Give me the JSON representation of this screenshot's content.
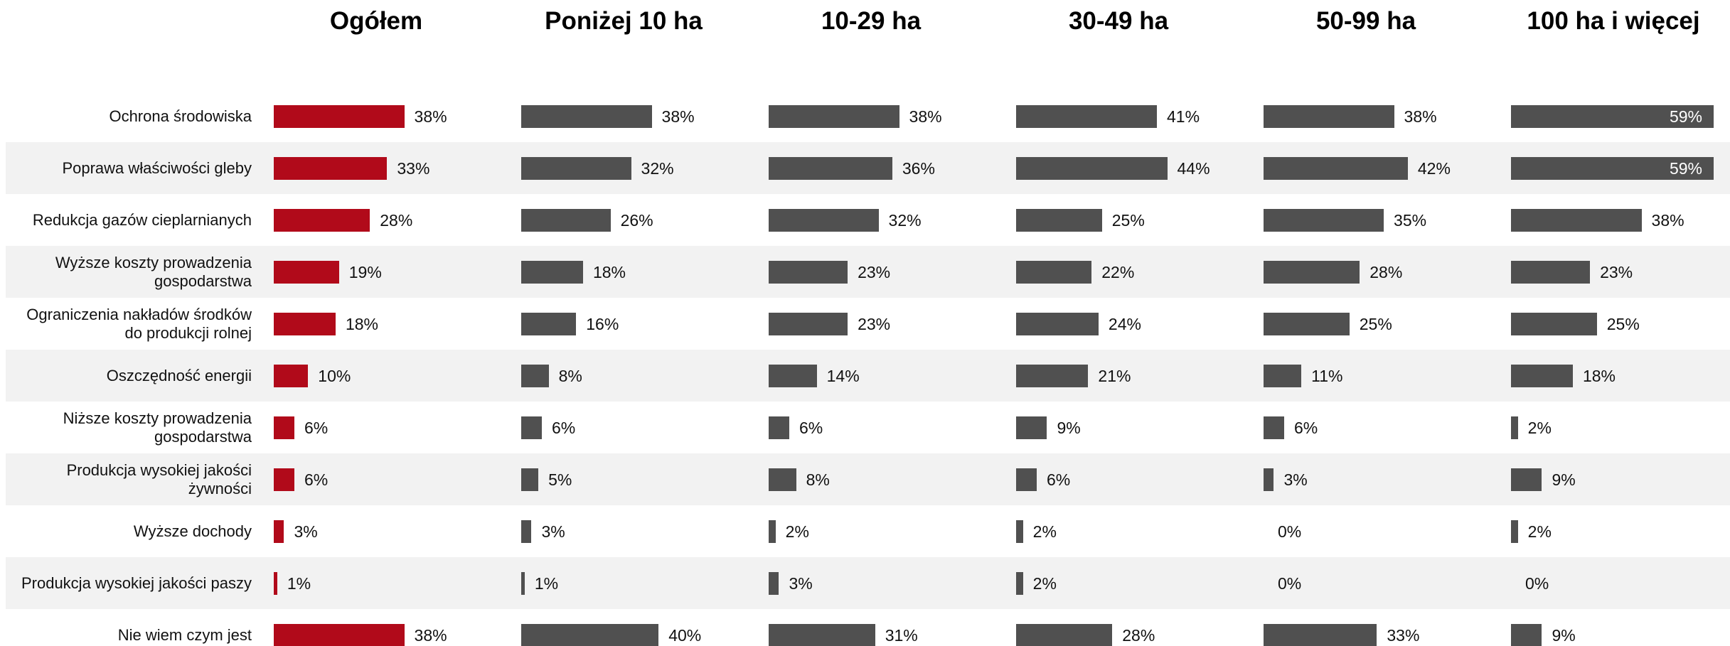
{
  "chart_data": {
    "type": "bar",
    "categories": [
      "Ochrona środowiska",
      "Poprawa właściwości gleby",
      "Redukcja gazów cieplarnianych",
      "Wyższe koszty prowadzenia gospodarstwa",
      "Ograniczenia nakładów środków do produkcji rolnej",
      "Oszczędność energii",
      "Niższe koszty prowadzenia gospodarstwa",
      "Produkcja wysokiej jakości żywności",
      "Wyższe dochody",
      "Produkcja wysokiej jakości paszy",
      "Nie wiem czym jest"
    ],
    "series": [
      {
        "name": "Ogółem",
        "color": "#b10a1a",
        "values": [
          38,
          33,
          28,
          19,
          18,
          10,
          6,
          6,
          3,
          1,
          38
        ],
        "value_labels": [
          "38%",
          "33%",
          "28%",
          "19%",
          "18%",
          "10%",
          "6%",
          "6%",
          "3%",
          "1%",
          "38%"
        ]
      },
      {
        "name": "Poniżej 10 ha",
        "color": "#505050",
        "values": [
          38,
          32,
          26,
          18,
          16,
          8,
          6,
          5,
          3,
          1,
          40
        ],
        "value_labels": [
          "38%",
          "32%",
          "26%",
          "18%",
          "16%",
          "8%",
          "6%",
          "5%",
          "3%",
          "1%",
          "40%"
        ]
      },
      {
        "name": "10-29 ha",
        "color": "#505050",
        "values": [
          38,
          36,
          32,
          23,
          23,
          14,
          6,
          8,
          2,
          3,
          31
        ],
        "value_labels": [
          "38%",
          "36%",
          "32%",
          "23%",
          "23%",
          "14%",
          "6%",
          "8%",
          "2%",
          "3%",
          "31%"
        ]
      },
      {
        "name": "30-49 ha",
        "color": "#505050",
        "values": [
          41,
          44,
          25,
          22,
          24,
          21,
          9,
          6,
          2,
          2,
          28
        ],
        "value_labels": [
          "41%",
          "44%",
          "25%",
          "22%",
          "24%",
          "21%",
          "9%",
          "6%",
          "2%",
          "2%",
          "28%"
        ]
      },
      {
        "name": "50-99 ha",
        "color": "#505050",
        "values": [
          38,
          42,
          35,
          28,
          25,
          11,
          6,
          3,
          0,
          0,
          33
        ],
        "value_labels": [
          "38%",
          "42%",
          "35%",
          "28%",
          "25%",
          "11%",
          "6%",
          "3%",
          "0%",
          "0%",
          "33%"
        ]
      },
      {
        "name": "100 ha i więcej",
        "color": "#505050",
        "values": [
          59,
          59,
          38,
          23,
          25,
          18,
          2,
          9,
          2,
          0,
          9
        ],
        "value_labels": [
          "59%",
          "59%",
          "38%",
          "23%",
          "25%",
          "18%",
          "2%",
          "9%",
          "2%",
          "0%",
          "9%"
        ]
      }
    ]
  }
}
